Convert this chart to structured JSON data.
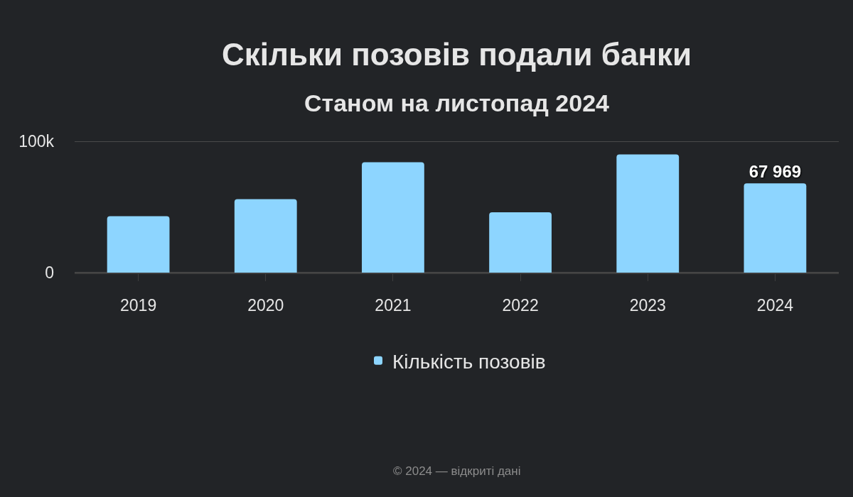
{
  "chart_data": {
    "type": "bar",
    "title": "Скільки позовів подали банки",
    "subtitle": "Станом на листопад 2024",
    "categories": [
      "2019",
      "2020",
      "2021",
      "2022",
      "2023",
      "2024"
    ],
    "series": [
      {
        "name": "Кількість позовів",
        "color": "#8dd5ff",
        "values": [
          43000,
          56000,
          84000,
          46000,
          90000,
          67969
        ],
        "value_labels": [
          null,
          null,
          null,
          null,
          null,
          "67 969"
        ]
      }
    ],
    "ylim": [
      0,
      100000
    ],
    "yticks": [
      0,
      {
        "value": 100000,
        "label": "100k"
      }
    ],
    "grid": "y",
    "legend": "bottom",
    "annotations": [
      "© 2024 — відкриті дані"
    ]
  }
}
